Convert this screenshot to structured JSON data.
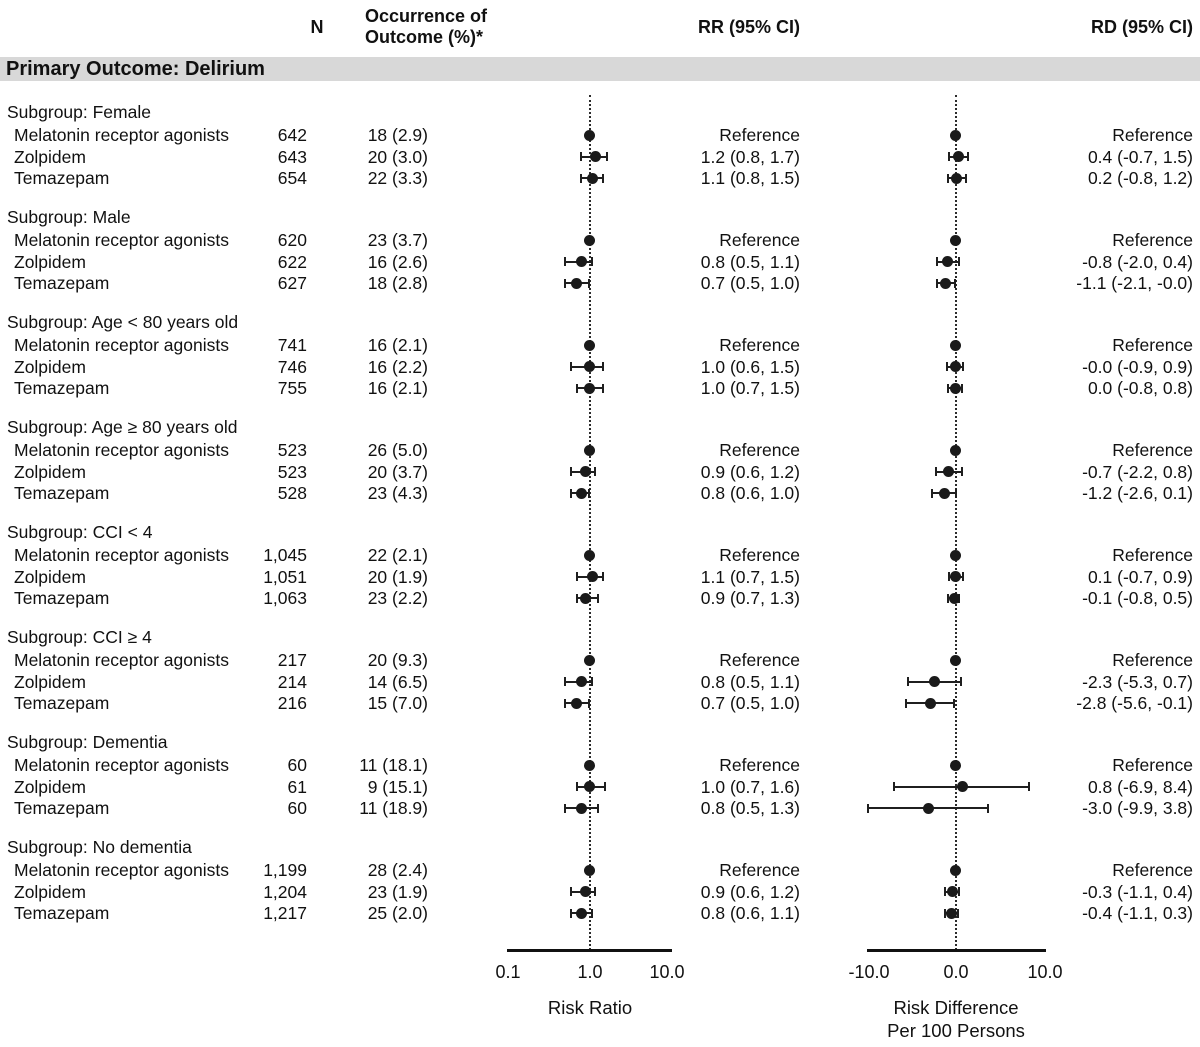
{
  "header": {
    "n": "N",
    "occurrence_line1": "Occurrence of",
    "occurrence_line2": "Outcome (%)*",
    "rr": "RR (95% CI)",
    "rd": "RD (95% CI)"
  },
  "band": "Primary Outcome: Delirium",
  "rr_ticks": {
    "t1": "0.1",
    "t2": "1.0",
    "t3": "10.0"
  },
  "rr_title": "Risk Ratio",
  "rd_ticks": {
    "t1": "-10.0",
    "t2": "0.0",
    "t3": "10.0"
  },
  "rd_title_line1": "Risk Difference",
  "rd_title_line2": "Per 100 Persons",
  "chart_data": {
    "type": "forest",
    "outcome": "Primary Outcome: Delirium",
    "columns": [
      "N",
      "Occurrence of Outcome (%)*",
      "RR (95% CI)",
      "RD (95% CI)"
    ],
    "rr_axis": {
      "scale": "log10",
      "ticks": [
        0.1,
        1.0,
        10.0
      ],
      "label": "Risk Ratio",
      "reference_line": 1.0
    },
    "rd_axis": {
      "scale": "linear",
      "ticks": [
        -10.0,
        0.0,
        10.0
      ],
      "label": "Risk Difference Per 100 Persons",
      "reference_line": 0.0
    },
    "groups": [
      {
        "subgroup": "Subgroup: Female",
        "rows": [
          {
            "label": "Melatonin receptor agonists",
            "n": "642",
            "occurrence": "18 (2.9)",
            "reference": true,
            "rr_text": "Reference",
            "rd_text": "Reference",
            "rr": 1.0,
            "rd": 0.0
          },
          {
            "label": "Zolpidem",
            "n": "643",
            "occurrence": "20 (3.0)",
            "reference": false,
            "rr_text": "1.2 (0.8, 1.7)",
            "rr": 1.2,
            "rr_lo": 0.8,
            "rr_hi": 1.7,
            "rd_text": "0.4 (-0.7, 1.5)",
            "rd": 0.4,
            "rd_lo": -0.7,
            "rd_hi": 1.5
          },
          {
            "label": "Temazepam",
            "n": "654",
            "occurrence": "22 (3.3)",
            "reference": false,
            "rr_text": "1.1 (0.8, 1.5)",
            "rr": 1.1,
            "rr_lo": 0.8,
            "rr_hi": 1.5,
            "rd_text": "0.2 (-0.8, 1.2)",
            "rd": 0.2,
            "rd_lo": -0.8,
            "rd_hi": 1.2
          }
        ]
      },
      {
        "subgroup": "Subgroup: Male",
        "rows": [
          {
            "label": "Melatonin receptor agonists",
            "n": "620",
            "occurrence": "23 (3.7)",
            "reference": true,
            "rr_text": "Reference",
            "rd_text": "Reference",
            "rr": 1.0,
            "rd": 0.0
          },
          {
            "label": "Zolpidem",
            "n": "622",
            "occurrence": "16 (2.6)",
            "reference": false,
            "rr_text": "0.8 (0.5, 1.1)",
            "rr": 0.8,
            "rr_lo": 0.5,
            "rr_hi": 1.1,
            "rd_text": "-0.8 (-2.0, 0.4)",
            "rd": -0.8,
            "rd_lo": -2.0,
            "rd_hi": 0.4
          },
          {
            "label": "Temazepam",
            "n": "627",
            "occurrence": "18 (2.8)",
            "reference": false,
            "rr_text": "0.7 (0.5, 1.0)",
            "rr": 0.7,
            "rr_lo": 0.5,
            "rr_hi": 1.0,
            "rd_text": "-1.1 (-2.1, -0.0)",
            "rd": -1.1,
            "rd_lo": -2.1,
            "rd_hi": 0.0
          }
        ]
      },
      {
        "subgroup": "Subgroup: Age < 80 years old",
        "rows": [
          {
            "label": "Melatonin receptor agonists",
            "n": "741",
            "occurrence": "16 (2.1)",
            "reference": true,
            "rr_text": "Reference",
            "rd_text": "Reference",
            "rr": 1.0,
            "rd": 0.0
          },
          {
            "label": "Zolpidem",
            "n": "746",
            "occurrence": "16 (2.2)",
            "reference": false,
            "rr_text": "1.0 (0.6, 1.5)",
            "rr": 1.0,
            "rr_lo": 0.6,
            "rr_hi": 1.5,
            "rd_text": "-0.0 (-0.9, 0.9)",
            "rd": 0.0,
            "rd_lo": -0.9,
            "rd_hi": 0.9
          },
          {
            "label": "Temazepam",
            "n": "755",
            "occurrence": "16 (2.1)",
            "reference": false,
            "rr_text": "1.0 (0.7, 1.5)",
            "rr": 1.0,
            "rr_lo": 0.7,
            "rr_hi": 1.5,
            "rd_text": "0.0 (-0.8, 0.8)",
            "rd": 0.0,
            "rd_lo": -0.8,
            "rd_hi": 0.8
          }
        ]
      },
      {
        "subgroup": "Subgroup: Age ≥ 80 years old",
        "rows": [
          {
            "label": "Melatonin receptor agonists",
            "n": "523",
            "occurrence": "26 (5.0)",
            "reference": true,
            "rr_text": "Reference",
            "rd_text": "Reference",
            "rr": 1.0,
            "rd": 0.0
          },
          {
            "label": "Zolpidem",
            "n": "523",
            "occurrence": "20 (3.7)",
            "reference": false,
            "rr_text": "0.9 (0.6, 1.2)",
            "rr": 0.9,
            "rr_lo": 0.6,
            "rr_hi": 1.2,
            "rd_text": "-0.7 (-2.2, 0.8)",
            "rd": -0.7,
            "rd_lo": -2.2,
            "rd_hi": 0.8
          },
          {
            "label": "Temazepam",
            "n": "528",
            "occurrence": "23 (4.3)",
            "reference": false,
            "rr_text": "0.8 (0.6, 1.0)",
            "rr": 0.8,
            "rr_lo": 0.6,
            "rr_hi": 1.0,
            "rd_text": "-1.2 (-2.6, 0.1)",
            "rd": -1.2,
            "rd_lo": -2.6,
            "rd_hi": 0.1
          }
        ]
      },
      {
        "subgroup": "Subgroup: CCI < 4",
        "rows": [
          {
            "label": "Melatonin receptor agonists",
            "n": "1,045",
            "occurrence": "22 (2.1)",
            "reference": true,
            "rr_text": "Reference",
            "rd_text": "Reference",
            "rr": 1.0,
            "rd": 0.0
          },
          {
            "label": "Zolpidem",
            "n": "1,051",
            "occurrence": "20 (1.9)",
            "reference": false,
            "rr_text": "1.1 (0.7, 1.5)",
            "rr": 1.1,
            "rr_lo": 0.7,
            "rr_hi": 1.5,
            "rd_text": "0.1 (-0.7, 0.9)",
            "rd": 0.1,
            "rd_lo": -0.7,
            "rd_hi": 0.9
          },
          {
            "label": "Temazepam",
            "n": "1,063",
            "occurrence": "23 (2.2)",
            "reference": false,
            "rr_text": "0.9 (0.7, 1.3)",
            "rr": 0.9,
            "rr_lo": 0.7,
            "rr_hi": 1.3,
            "rd_text": "-0.1 (-0.8, 0.5)",
            "rd": -0.1,
            "rd_lo": -0.8,
            "rd_hi": 0.5
          }
        ]
      },
      {
        "subgroup": "Subgroup: CCI ≥ 4",
        "rows": [
          {
            "label": "Melatonin receptor agonists",
            "n": "217",
            "occurrence": "20 (9.3)",
            "reference": true,
            "rr_text": "Reference",
            "rd_text": "Reference",
            "rr": 1.0,
            "rd": 0.0
          },
          {
            "label": "Zolpidem",
            "n": "214",
            "occurrence": "14 (6.5)",
            "reference": false,
            "rr_text": "0.8 (0.5, 1.1)",
            "rr": 0.8,
            "rr_lo": 0.5,
            "rr_hi": 1.1,
            "rd_text": "-2.3 (-5.3, 0.7)",
            "rd": -2.3,
            "rd_lo": -5.3,
            "rd_hi": 0.7
          },
          {
            "label": "Temazepam",
            "n": "216",
            "occurrence": "15 (7.0)",
            "reference": false,
            "rr_text": "0.7 (0.5, 1.0)",
            "rr": 0.7,
            "rr_lo": 0.5,
            "rr_hi": 1.0,
            "rd_text": "-2.8 (-5.6, -0.1)",
            "rd": -2.8,
            "rd_lo": -5.6,
            "rd_hi": -0.1
          }
        ]
      },
      {
        "subgroup": "Subgroup: Dementia",
        "rows": [
          {
            "label": "Melatonin receptor agonists",
            "n": "60",
            "occurrence": "11 (18.1)",
            "reference": true,
            "rr_text": "Reference",
            "rd_text": "Reference",
            "rr": 1.0,
            "rd": 0.0
          },
          {
            "label": "Zolpidem",
            "n": "61",
            "occurrence": "9 (15.1)",
            "reference": false,
            "rr_text": "1.0 (0.7, 1.6)",
            "rr": 1.0,
            "rr_lo": 0.7,
            "rr_hi": 1.6,
            "rd_text": "0.8 (-6.9, 8.4)",
            "rd": 0.8,
            "rd_lo": -6.9,
            "rd_hi": 8.4
          },
          {
            "label": "Temazepam",
            "n": "60",
            "occurrence": "11 (18.9)",
            "reference": false,
            "rr_text": "0.8 (0.5, 1.3)",
            "rr": 0.8,
            "rr_lo": 0.5,
            "rr_hi": 1.3,
            "rd_text": "-3.0 (-9.9, 3.8)",
            "rd": -3.0,
            "rd_lo": -9.9,
            "rd_hi": 3.8
          }
        ]
      },
      {
        "subgroup": "Subgroup: No dementia",
        "rows": [
          {
            "label": "Melatonin receptor agonists",
            "n": "1,199",
            "occurrence": "28 (2.4)",
            "reference": true,
            "rr_text": "Reference",
            "rd_text": "Reference",
            "rr": 1.0,
            "rd": 0.0
          },
          {
            "label": "Zolpidem",
            "n": "1,204",
            "occurrence": "23 (1.9)",
            "reference": false,
            "rr_text": "0.9 (0.6, 1.2)",
            "rr": 0.9,
            "rr_lo": 0.6,
            "rr_hi": 1.2,
            "rd_text": "-0.3 (-1.1, 0.4)",
            "rd": -0.3,
            "rd_lo": -1.1,
            "rd_hi": 0.4
          },
          {
            "label": "Temazepam",
            "n": "1,217",
            "occurrence": "25 (2.0)",
            "reference": false,
            "rr_text": "0.8 (0.6, 1.1)",
            "rr": 0.8,
            "rr_lo": 0.6,
            "rr_hi": 1.1,
            "rd_text": "-0.4 (-1.1, 0.3)",
            "rd": -0.4,
            "rd_lo": -1.1,
            "rd_hi": 0.3
          }
        ]
      }
    ]
  }
}
